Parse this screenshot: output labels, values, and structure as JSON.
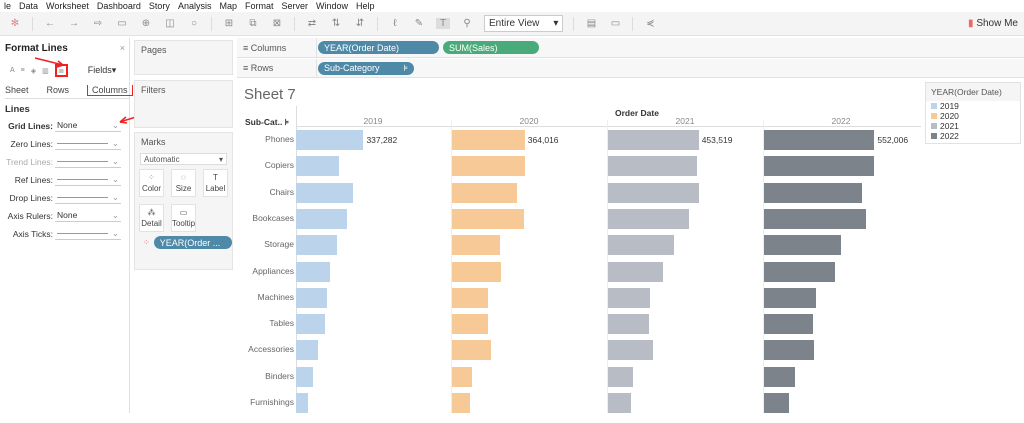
{
  "menu": [
    "le",
    "Data",
    "Worksheet",
    "Dashboard",
    "Story",
    "Analysis",
    "Map",
    "Format",
    "Server",
    "Window",
    "Help"
  ],
  "toolbar": {
    "fit": "Entire View",
    "show_me": "Show Me"
  },
  "format_pane": {
    "title": "Format Lines",
    "fields": "Fields",
    "tabs": [
      "Sheet",
      "Rows",
      "Columns"
    ],
    "section": "Lines",
    "rows": [
      {
        "label": "Grid Lines:",
        "value": "None"
      },
      {
        "label": "Zero Lines:",
        "value": ""
      },
      {
        "label": "Trend Lines:",
        "value": ""
      },
      {
        "label": "Ref Lines:",
        "value": ""
      },
      {
        "label": "Drop Lines:",
        "value": ""
      },
      {
        "label": "Axis Rulers:",
        "value": "None"
      },
      {
        "label": "Axis Ticks:",
        "value": ""
      }
    ]
  },
  "cards": {
    "pages": "Pages",
    "filters": "Filters",
    "marks": "Marks",
    "mark_type": "Automatic",
    "buttons": [
      "Color",
      "Size",
      "Label",
      "Detail",
      "Tooltip"
    ],
    "pill": "YEAR(Order ..."
  },
  "shelves": {
    "columns": "Columns",
    "rows": "Rows",
    "col_pills": [
      "YEAR(Order Date)",
      "SUM(Sales)"
    ],
    "row_pills": [
      "Sub-Category"
    ]
  },
  "sheet": {
    "title": "Sheet 7",
    "header": "Order Date",
    "row_header": "Sub-Cat.."
  },
  "legend": {
    "title": "YEAR(Order Date)",
    "items": [
      {
        "label": "2019",
        "color": "#bcd3ec"
      },
      {
        "label": "2020",
        "color": "#f6c996"
      },
      {
        "label": "2021",
        "color": "#b8bcc4"
      },
      {
        "label": "2022",
        "color": "#7c838b"
      }
    ]
  },
  "chart_data": {
    "type": "bar",
    "xlabel": "Order Date",
    "ylabel": "Sub-Category",
    "xlim": [
      0,
      770000
    ],
    "categories": [
      "Phones",
      "Copiers",
      "Chairs",
      "Bookcases",
      "Storage",
      "Appliances",
      "Machines",
      "Tables",
      "Accessories",
      "Binders",
      "Furnishings"
    ],
    "series": [
      {
        "name": "2019",
        "values": [
          337282,
          214000,
          285000,
          256000,
          204000,
          171000,
          157000,
          147000,
          109000,
          86000,
          62000
        ],
        "label": "337,282"
      },
      {
        "name": "2020",
        "values": [
          364016,
          364000,
          326000,
          359000,
          241000,
          246000,
          182000,
          182000,
          193000,
          102000,
          91000
        ],
        "label": "364,016"
      },
      {
        "name": "2021",
        "values": [
          453519,
          443000,
          453000,
          403000,
          331000,
          275000,
          209000,
          204000,
          224000,
          127000,
          117000
        ],
        "label": "453,519"
      },
      {
        "name": "2022",
        "values": [
          552006,
          552000,
          490000,
          509000,
          385000,
          357000,
          262000,
          243000,
          252000,
          157000,
          124000
        ],
        "label": "552,006"
      }
    ]
  }
}
